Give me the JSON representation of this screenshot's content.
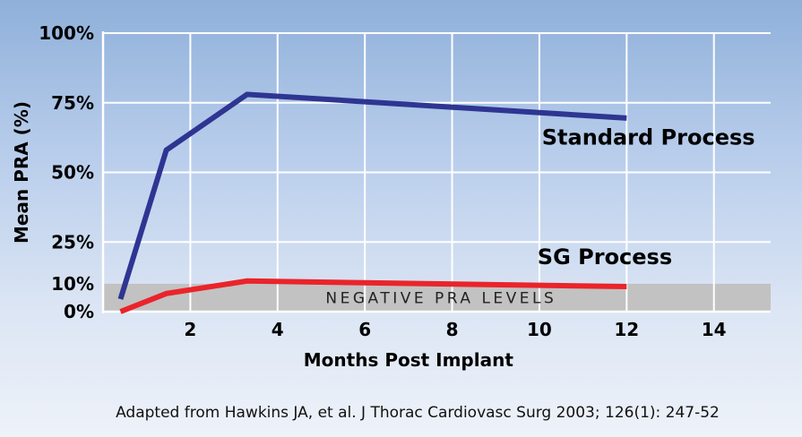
{
  "chart_data": {
    "type": "line",
    "title": "",
    "xlabel": "Months Post Implant",
    "ylabel": "Mean PRA (%)",
    "xlim": [
      0,
      15.3
    ],
    "ylim": [
      0,
      100
    ],
    "x_ticks": [
      2,
      4,
      6,
      8,
      10,
      12,
      14
    ],
    "x_tick_labels": [
      "2",
      "4",
      "6",
      "8",
      "10",
      "12",
      "14"
    ],
    "y_ticks": [
      0,
      10,
      25,
      50,
      75,
      100
    ],
    "y_tick_labels": [
      "0%",
      "10%",
      "25%",
      "50%",
      "75%",
      "100%"
    ],
    "gridlines": [
      25,
      50,
      75,
      100
    ],
    "band": {
      "label": "NEGATIVE PRA LEVELS",
      "from": 0,
      "to": 10,
      "color": "#c2c2c2"
    },
    "series": [
      {
        "name": "Standard Process",
        "color": "#2e3592",
        "points": [
          [
            0.4,
            4.5
          ],
          [
            1.45,
            58
          ],
          [
            3.3,
            78
          ],
          [
            12,
            69.5
          ]
        ],
        "label_anchor": [
          12.5,
          60
        ]
      },
      {
        "name": "SG Process",
        "color": "#ea242a",
        "points": [
          [
            0.4,
            0
          ],
          [
            1.45,
            6.5
          ],
          [
            3.3,
            11
          ],
          [
            12,
            9
          ]
        ],
        "label_anchor": [
          11.5,
          17
        ]
      }
    ],
    "source": "Adapted from Hawkins JA, et al. J Thorac Cardiovasc Surg 2003; 126(1): 247-52",
    "background_top": "#8fb0da",
    "background_bottom": "#eef2f9"
  }
}
